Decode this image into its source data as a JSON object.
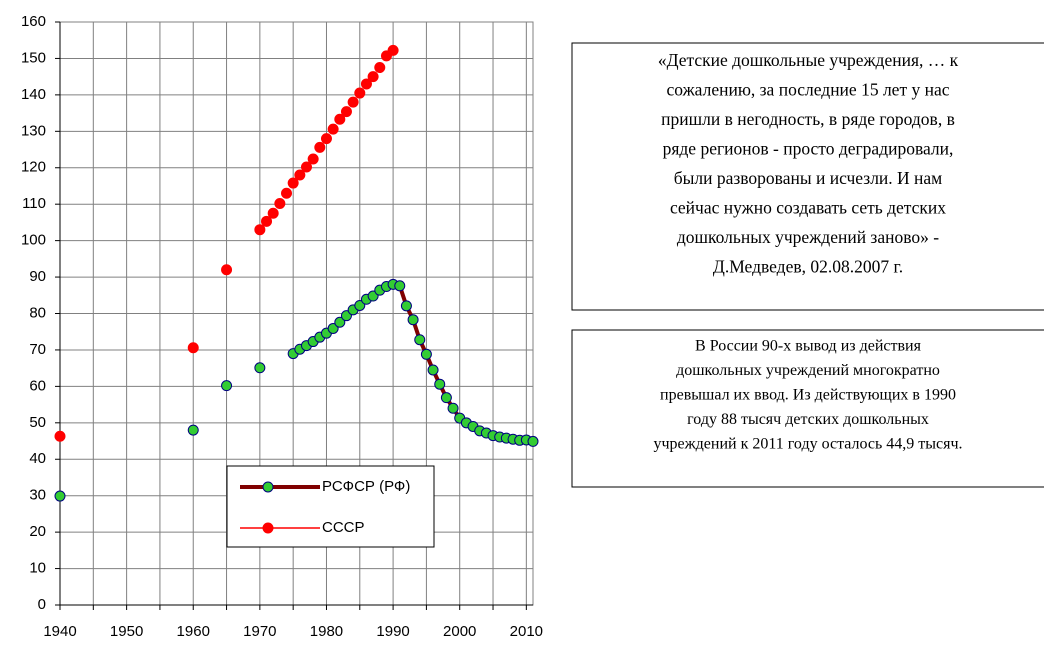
{
  "chart_data": {
    "type": "scatter",
    "xlim": [
      1940,
      2011
    ],
    "ylim": [
      0,
      160
    ],
    "xticks": [
      1940,
      1950,
      1960,
      1970,
      1980,
      1990,
      2000,
      2010
    ],
    "x_minor_ticks": [
      1945,
      1955,
      1965,
      1975,
      1985,
      1995,
      2005
    ],
    "yticks": [
      0,
      10,
      20,
      30,
      40,
      50,
      60,
      70,
      80,
      90,
      100,
      110,
      120,
      130,
      140,
      150,
      160
    ],
    "grid": true,
    "legend": "bottom-center",
    "x": [
      1940,
      1941,
      1942,
      1943,
      1944,
      1945,
      1946,
      1947,
      1948,
      1949,
      1950,
      1951,
      1952,
      1953,
      1954,
      1955,
      1956,
      1957,
      1958,
      1959,
      1960,
      1961,
      1962,
      1963,
      1964,
      1965,
      1966,
      1967,
      1968,
      1969,
      1970,
      1971,
      1972,
      1973,
      1974,
      1975,
      1976,
      1977,
      1978,
      1979,
      1980,
      1981,
      1982,
      1983,
      1984,
      1985,
      1986,
      1987,
      1988,
      1989,
      1990,
      1991,
      1992,
      1993,
      1994,
      1995,
      1996,
      1997,
      1998,
      1999,
      2000,
      2001,
      2002,
      2003,
      2004,
      2005,
      2006,
      2007,
      2008,
      2009,
      2010,
      2011
    ],
    "series": [
      {
        "name": "РСФСР (РФ)",
        "color": "#33cc33",
        "line_color": "#800000",
        "line": true,
        "values": [
          29.9,
          null,
          null,
          null,
          null,
          null,
          null,
          null,
          null,
          null,
          null,
          null,
          null,
          null,
          null,
          null,
          null,
          null,
          null,
          null,
          48,
          null,
          null,
          null,
          null,
          60.2,
          null,
          null,
          null,
          null,
          65.1,
          null,
          null,
          null,
          null,
          69,
          70.2,
          71.2,
          72.3,
          73.5,
          74.6,
          75.9,
          77.6,
          79.4,
          81,
          82.2,
          83.9,
          84.8,
          86.4,
          87.4,
          88,
          87.6,
          82.1,
          78.3,
          72.8,
          68.8,
          64.5,
          60.6,
          56.9,
          54,
          51.3,
          50,
          49,
          47.8,
          47.2,
          46.5,
          46.1,
          45.8,
          45.5,
          45.2,
          45.3,
          44.9
        ]
      },
      {
        "name": "СССР",
        "color": "#ff0000",
        "line_color": "#ff0000",
        "line": false,
        "values": [
          46.3,
          null,
          null,
          null,
          null,
          null,
          null,
          null,
          null,
          null,
          null,
          null,
          null,
          null,
          null,
          null,
          null,
          null,
          null,
          null,
          70.6,
          null,
          null,
          null,
          null,
          92,
          null,
          null,
          null,
          null,
          103,
          105.3,
          107.5,
          110.2,
          113,
          115.8,
          118,
          120.2,
          122.4,
          125.6,
          128,
          130.6,
          133.3,
          135.4,
          138,
          140.5,
          143,
          145,
          147.5,
          150.7,
          152.2,
          null,
          null,
          null,
          null,
          null,
          null,
          null,
          null,
          null,
          null,
          null,
          null,
          null,
          null,
          null,
          null,
          null,
          null,
          null,
          null,
          null
        ]
      }
    ],
    "annotations": [
      {
        "lines": [
          "«Детские дошкольные учреждения, … к",
          "сожалению, за последние 15 лет у нас",
          "пришли в негодность, в ряде городов, в",
          "ряде регионов - просто деградировали,",
          "были разворованы и исчезли. И нам",
          "сейчас нужно создавать сеть детских",
          "дошкольных учреждений заново» -",
          "Д.Медведев, 02.08.2007 г."
        ]
      },
      {
        "lines": [
          "В России 90-х вывод из действия",
          "дошкольных учреждений многократно",
          "превышал их ввод. Из действующих в 1990",
          "году 88 тысяч детских дошкольных",
          "учреждений к 2011 году осталось 44,9 тысяч."
        ]
      }
    ]
  }
}
